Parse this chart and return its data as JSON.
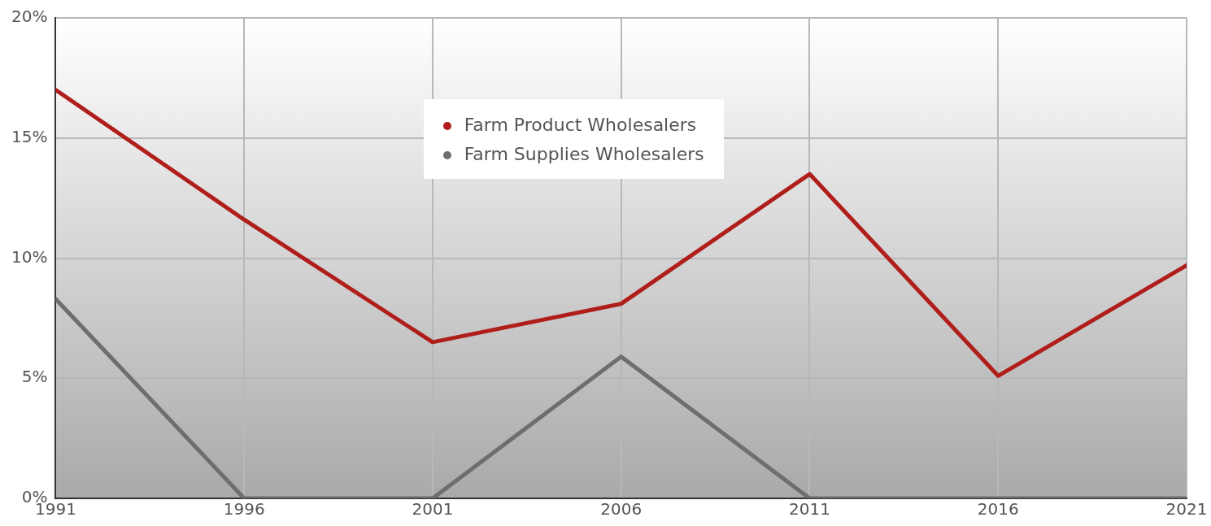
{
  "chart_data": {
    "type": "line",
    "x": [
      1991,
      1996,
      2001,
      2006,
      2011,
      2016,
      2021
    ],
    "series": [
      {
        "name": "Farm Product Wholesalers",
        "color": "#b01e1b",
        "values": [
          17,
          11.6,
          6.5,
          8.1,
          13.5,
          5.1,
          9.7
        ]
      },
      {
        "name": "Farm Supplies Wholesalers",
        "color": "#6e6e6e",
        "values": [
          8.3,
          0,
          0,
          5.9,
          0,
          0,
          0
        ]
      }
    ],
    "xlim": [
      1991,
      2021
    ],
    "xticks": [
      1991,
      1996,
      2001,
      2006,
      2011,
      2016,
      2021
    ],
    "ylim": [
      0,
      20
    ],
    "yticks": [
      {
        "value": 0,
        "label": "0%"
      },
      {
        "value": 5,
        "label": "5%"
      },
      {
        "value": 10,
        "label": "10%"
      },
      {
        "value": 15,
        "label": "15%"
      },
      {
        "value": 20,
        "label": "20%"
      }
    ],
    "grid": true,
    "legend": "top",
    "marker": "none",
    "line_style": "solid"
  }
}
